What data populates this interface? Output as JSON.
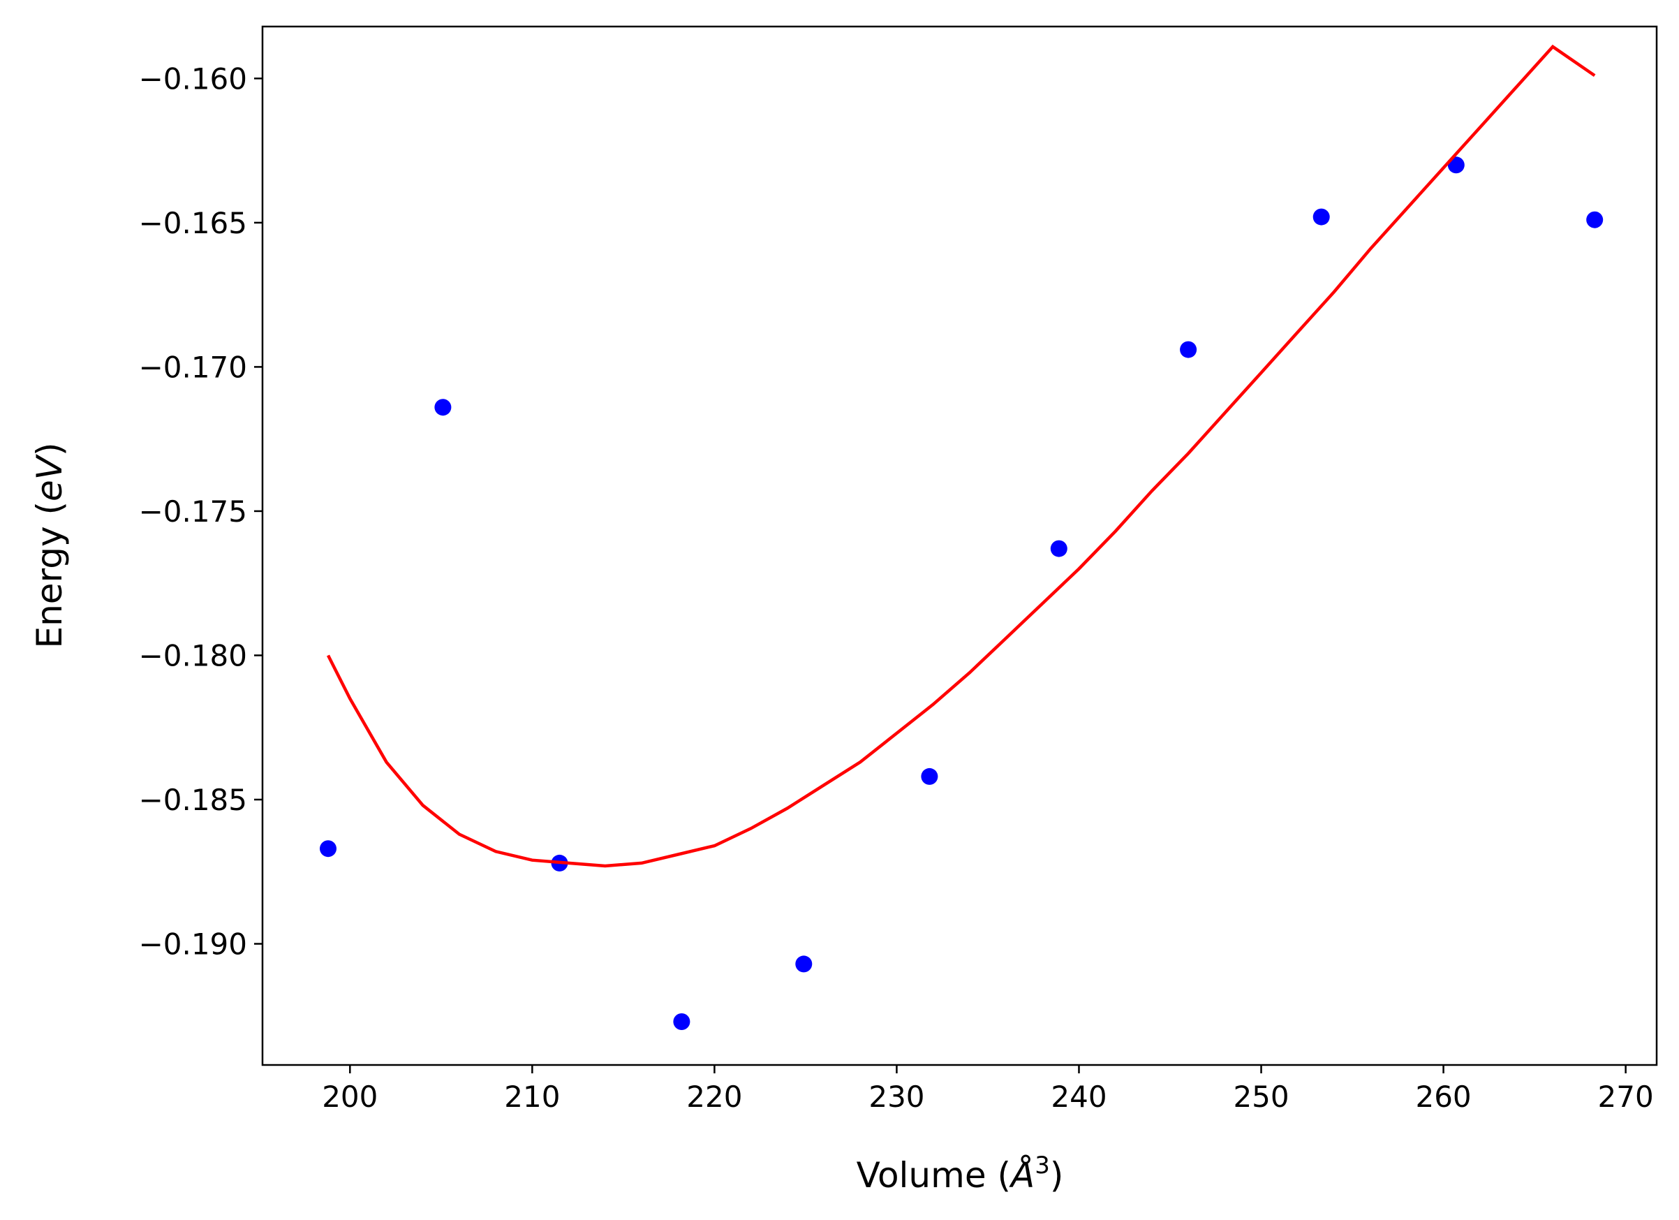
{
  "chart_data": {
    "type": "scatter",
    "title": "",
    "xlabel": "Volume (Å³)",
    "xlabel_parts": {
      "prefix": "Volume (",
      "symbol": "Å",
      "sup": "3",
      "suffix": ")"
    },
    "ylabel": "Energy (eV)",
    "ylabel_parts": {
      "prefix": "Energy (",
      "unit": "eV",
      "suffix": ")"
    },
    "xlim": [
      195.2,
      271.7
    ],
    "ylim": [
      -0.1942,
      -0.1582
    ],
    "xticks": [
      200,
      210,
      220,
      230,
      240,
      250,
      260,
      270
    ],
    "xtick_labels": [
      "200",
      "210",
      "220",
      "230",
      "240",
      "250",
      "260",
      "270"
    ],
    "yticks": [
      -0.16,
      -0.165,
      -0.17,
      -0.175,
      -0.18,
      -0.185,
      -0.19
    ],
    "ytick_labels": [
      "−0.160",
      "−0.165",
      "−0.170",
      "−0.175",
      "−0.180",
      "−0.185",
      "−0.190"
    ],
    "grid": false,
    "series": [
      {
        "kind": "scatter",
        "color": "#0000ff",
        "points": [
          {
            "x": 198.8,
            "y": -0.1867
          },
          {
            "x": 205.1,
            "y": -0.1714
          },
          {
            "x": 211.5,
            "y": -0.1872
          },
          {
            "x": 218.2,
            "y": -0.1927
          },
          {
            "x": 224.9,
            "y": -0.1907
          },
          {
            "x": 231.8,
            "y": -0.1842
          },
          {
            "x": 238.9,
            "y": -0.1763
          },
          {
            "x": 246.0,
            "y": -0.1694
          },
          {
            "x": 253.3,
            "y": -0.1648
          },
          {
            "x": 260.7,
            "y": -0.163
          },
          {
            "x": 268.3,
            "y": -0.1649
          }
        ]
      },
      {
        "kind": "line",
        "color": "#ff0000",
        "points": [
          {
            "x": 198.8,
            "y": -0.18
          },
          {
            "x": 200.0,
            "y": -0.1815
          },
          {
            "x": 202.0,
            "y": -0.1837
          },
          {
            "x": 204.0,
            "y": -0.1852
          },
          {
            "x": 206.0,
            "y": -0.1862
          },
          {
            "x": 208.0,
            "y": -0.1868
          },
          {
            "x": 210.0,
            "y": -0.1871
          },
          {
            "x": 212.0,
            "y": -0.1872
          },
          {
            "x": 214.0,
            "y": -0.1873
          },
          {
            "x": 216.0,
            "y": -0.1872
          },
          {
            "x": 218.0,
            "y": -0.1869
          },
          {
            "x": 220.0,
            "y": -0.1866
          },
          {
            "x": 222.0,
            "y": -0.186
          },
          {
            "x": 224.0,
            "y": -0.1853
          },
          {
            "x": 226.0,
            "y": -0.1845
          },
          {
            "x": 228.0,
            "y": -0.1837
          },
          {
            "x": 230.0,
            "y": -0.1827
          },
          {
            "x": 232.0,
            "y": -0.1817
          },
          {
            "x": 234.0,
            "y": -0.1806
          },
          {
            "x": 236.0,
            "y": -0.1794
          },
          {
            "x": 238.0,
            "y": -0.1782
          },
          {
            "x": 240.0,
            "y": -0.177
          },
          {
            "x": 242.0,
            "y": -0.1757
          },
          {
            "x": 244.0,
            "y": -0.1743
          },
          {
            "x": 246.0,
            "y": -0.173
          },
          {
            "x": 248.0,
            "y": -0.1716
          },
          {
            "x": 250.0,
            "y": -0.1702
          },
          {
            "x": 252.0,
            "y": -0.1688
          },
          {
            "x": 254.0,
            "y": -0.1674
          },
          {
            "x": 256.0,
            "y": -0.1659
          },
          {
            "x": 258.0,
            "y": -0.1645
          },
          {
            "x": 260.0,
            "y": -0.1631
          },
          {
            "x": 262.0,
            "y": -0.1617
          },
          {
            "x": 264.0,
            "y": -0.1603
          },
          {
            "x": 266.0,
            "y": -0.1589
          },
          {
            "x": 268.3,
            "y": -0.1599
          }
        ]
      }
    ]
  }
}
